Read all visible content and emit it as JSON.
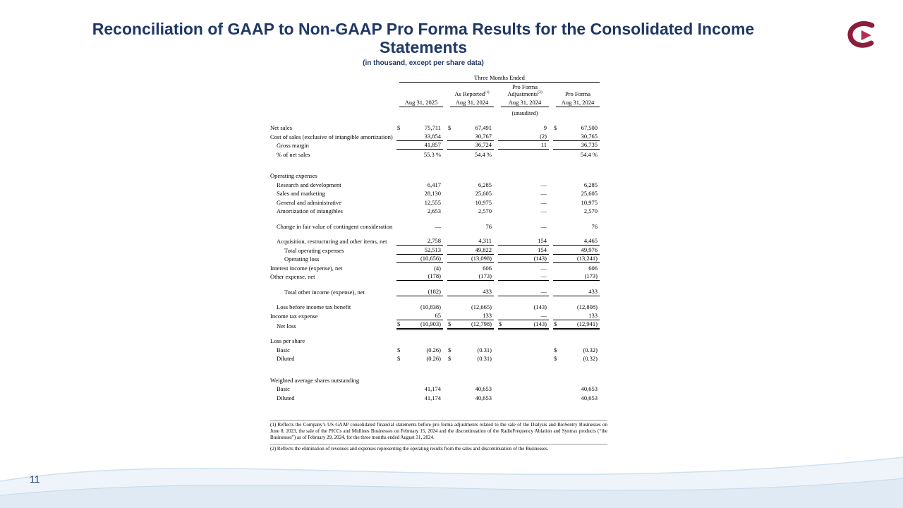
{
  "slide": {
    "title_line1": "Reconciliation of GAAP to Non-GAAP Pro Forma Results for the Consolidated Income",
    "title_line2": "Statements",
    "subtitle": "(in thousand, except per share data)",
    "page_number": "11",
    "accent_color": "#1f3864",
    "logo_color": "#8c1e3c"
  },
  "table": {
    "span_header": "Three Months Ended",
    "groups": {
      "as_reported": "As Reported",
      "as_reported_sup": "(1)",
      "proforma_adj_line1": "Pro Forma",
      "proforma_adj_line2": "Adjustments",
      "proforma_adj_sup": "(2)",
      "pro_forma": "Pro Forma"
    },
    "dates": [
      "Aug 31, 2025",
      "Aug 31, 2024",
      "Aug 31, 2024",
      "Aug 31, 2024"
    ],
    "unaudited": "(unaudited)",
    "rows": [
      {
        "label": "Net sales",
        "indent": 0,
        "values": [
          "75,711",
          "67,491",
          "9",
          "67,500"
        ],
        "dollar": [
          1,
          1,
          0,
          1
        ]
      },
      {
        "label": "Cost of sales (exclusive of intangible amortization)",
        "indent": 0,
        "values": [
          "33,854",
          "30,767",
          "(2)",
          "30,765"
        ],
        "b": "bb"
      },
      {
        "label": "Gross margin",
        "indent": 1,
        "values": [
          "41,857",
          "36,724",
          "11",
          "36,735"
        ],
        "b": "bb"
      },
      {
        "label": "% of net sales",
        "indent": 1,
        "values": [
          "55.3 %",
          "54.4 %",
          "",
          "54.4 %"
        ]
      },
      {
        "type": "blank"
      },
      {
        "type": "blank"
      },
      {
        "label": "Operating expenses",
        "type": "section",
        "indent": 0
      },
      {
        "label": "Research and development",
        "indent": 1,
        "values": [
          "6,417",
          "6,285",
          "—",
          "6,285"
        ]
      },
      {
        "label": "Sales and marketing",
        "indent": 1,
        "values": [
          "28,130",
          "25,605",
          "—",
          "25,605"
        ]
      },
      {
        "label": "General and administrative",
        "indent": 1,
        "values": [
          "12,555",
          "10,975",
          "—",
          "10,975"
        ]
      },
      {
        "label": "Amortization of intangibles",
        "indent": 1,
        "values": [
          "2,653",
          "2,570",
          "—",
          "2,570"
        ]
      },
      {
        "type": "blank"
      },
      {
        "label": "Change in fair value of contingent consideration",
        "indent": 1,
        "values": [
          "—",
          "76",
          "—",
          "76"
        ]
      },
      {
        "type": "blank"
      },
      {
        "label": "Acquisition, restructuring and other items, net",
        "indent": 1,
        "values": [
          "2,758",
          "4,311",
          "154",
          "4,465"
        ],
        "b": "bb"
      },
      {
        "label": "Total operating expenses",
        "indent": 2,
        "values": [
          "52,513",
          "49,822",
          "154",
          "49,976"
        ],
        "b": "bb"
      },
      {
        "label": "Operating loss",
        "indent": 2,
        "values": [
          "(10,656)",
          "(13,098)",
          "(143)",
          "(13,241)"
        ],
        "b": "bb"
      },
      {
        "label": "Interest income (expense), net",
        "indent": 0,
        "values": [
          "(4)",
          "606",
          "—",
          "606"
        ]
      },
      {
        "label": "Other expense, net",
        "indent": 0,
        "values": [
          "(178)",
          "(173)",
          "—",
          "(173)"
        ],
        "b": "bb"
      },
      {
        "type": "blank"
      },
      {
        "label": "Total other income (expense), net",
        "indent": 2,
        "values": [
          "(182)",
          "433",
          "—",
          "433"
        ],
        "b": "bb"
      },
      {
        "type": "blank"
      },
      {
        "label": "Loss before income tax benefit",
        "indent": 1,
        "values": [
          "(10,838)",
          "(12,665)",
          "(143)",
          "(12,808)"
        ]
      },
      {
        "label": "Income tax expense",
        "indent": 0,
        "values": [
          "65",
          "133",
          "—",
          "133"
        ],
        "b": "bb"
      },
      {
        "label": "Net loss",
        "indent": 1,
        "values": [
          "(10,903)",
          "(12,798)",
          "(143)",
          "(12,941)"
        ],
        "dollar": [
          1,
          1,
          1,
          1
        ],
        "b": "bd"
      },
      {
        "type": "blank"
      },
      {
        "label": "Loss per share",
        "type": "section",
        "indent": 0
      },
      {
        "label": "Basic",
        "indent": 1,
        "values": [
          "(0.26)",
          "(0.31)",
          "",
          "(0.32)"
        ],
        "dollar": [
          1,
          1,
          0,
          1
        ]
      },
      {
        "label": "Diluted",
        "indent": 1,
        "values": [
          "(0.26)",
          "(0.31)",
          "",
          "(0.32)"
        ],
        "dollar": [
          1,
          1,
          0,
          1
        ]
      },
      {
        "type": "blank"
      },
      {
        "type": "blank"
      },
      {
        "label": "Weighted average shares outstanding",
        "type": "section",
        "indent": 0
      },
      {
        "label": "Basic",
        "indent": 1,
        "values": [
          "41,174",
          "40,653",
          "",
          "40,653"
        ]
      },
      {
        "label": "Diluted",
        "indent": 1,
        "values": [
          "41,174",
          "40,653",
          "",
          "40,653"
        ]
      }
    ]
  },
  "footnotes": [
    "(1)  Reflects the Company’s US GAAP consolidated financial statements before pro forma adjustments related to the sale of the Dialysis and BioSentry Businesses on June 8, 2023, the sale of the PICCs and Midlines Businesses on February 15, 2024 and the discontinuation of the RadioFrequency Ablation and Syntrax products (“the Businesses”) as of February 29, 2024, for the three months ended August 31, 2024.",
    "(2) Reflects the elimination of revenues and expenses representing the operating results from the sales and discontinuation of the Businesses."
  ]
}
